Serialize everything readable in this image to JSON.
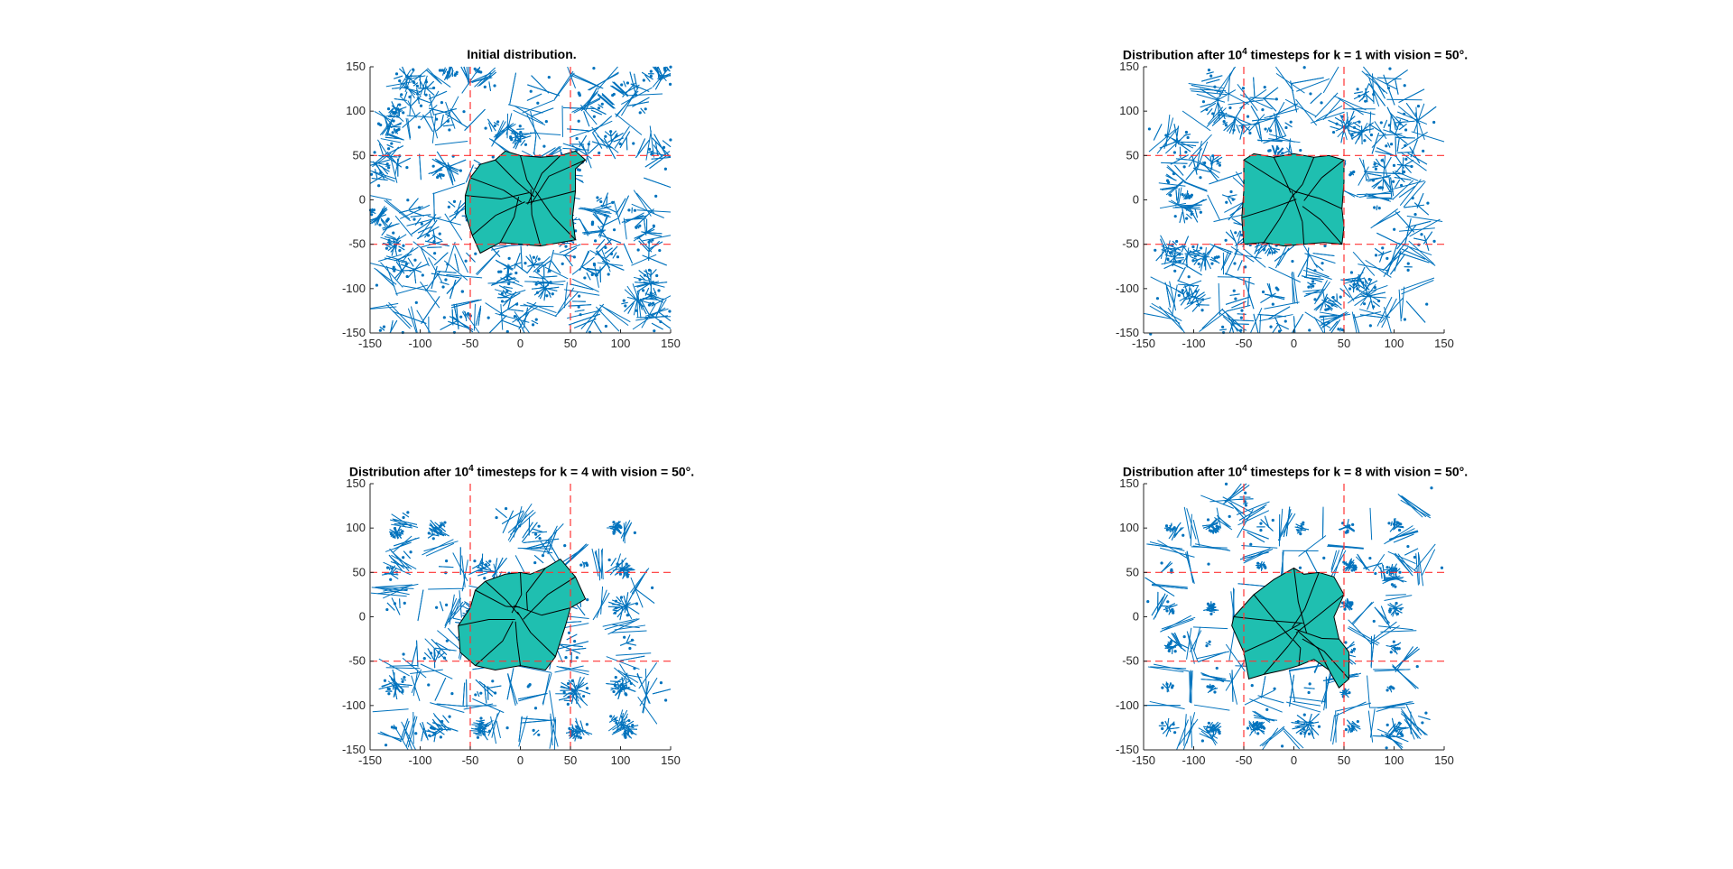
{
  "chart_data": [
    {
      "type": "scatter",
      "title_parts": {
        "text": "Initial distribution.",
        "pre": "",
        "sup": "",
        "post": ""
      },
      "xlim": [
        -150,
        150
      ],
      "ylim": [
        -150,
        150
      ],
      "xticks": [
        -150,
        -100,
        -50,
        0,
        50,
        100,
        150
      ],
      "yticks": [
        -150,
        -100,
        -50,
        0,
        50,
        100,
        150
      ],
      "reference_lines_x": [
        -50,
        50
      ],
      "reference_lines_y": [
        -50,
        50
      ],
      "highlight_region": [
        [
          -50,
          25
        ],
        [
          -40,
          40
        ],
        [
          -25,
          45
        ],
        [
          -15,
          55
        ],
        [
          0,
          50
        ],
        [
          20,
          48
        ],
        [
          40,
          50
        ],
        [
          55,
          55
        ],
        [
          65,
          45
        ],
        [
          55,
          35
        ],
        [
          55,
          10
        ],
        [
          52,
          -20
        ],
        [
          55,
          -45
        ],
        [
          40,
          -48
        ],
        [
          20,
          -52
        ],
        [
          0,
          -50
        ],
        [
          -20,
          -48
        ],
        [
          -40,
          -60
        ],
        [
          -48,
          -40
        ],
        [
          -55,
          -15
        ],
        [
          -55,
          5
        ]
      ],
      "distribution": "uniform",
      "colors": {
        "points": "#0072bd",
        "voronoi": "#0072bd",
        "region": "#1fbfb0",
        "ref": "#ff3333"
      }
    },
    {
      "type": "scatter",
      "title_parts": {
        "text": "",
        "pre": "Distribution after 10",
        "sup": "4",
        "post": " timesteps for k = 1 with vision = 50°."
      },
      "xlim": [
        -150,
        150
      ],
      "ylim": [
        -150,
        150
      ],
      "xticks": [
        -150,
        -100,
        -50,
        0,
        50,
        100,
        150
      ],
      "yticks": [
        -150,
        -100,
        -50,
        0,
        50,
        100,
        150
      ],
      "reference_lines_x": [
        -50,
        50
      ],
      "reference_lines_y": [
        -50,
        50
      ],
      "highlight_region": [
        [
          -50,
          45
        ],
        [
          -40,
          52
        ],
        [
          -20,
          48
        ],
        [
          0,
          52
        ],
        [
          20,
          48
        ],
        [
          35,
          50
        ],
        [
          50,
          45
        ],
        [
          50,
          20
        ],
        [
          48,
          -10
        ],
        [
          50,
          -30
        ],
        [
          48,
          -50
        ],
        [
          30,
          -48
        ],
        [
          10,
          -50
        ],
        [
          -10,
          -52
        ],
        [
          -30,
          -48
        ],
        [
          -50,
          -50
        ],
        [
          -52,
          -20
        ],
        [
          -50,
          10
        ]
      ],
      "distribution": "clustered-light",
      "colors": {
        "points": "#0072bd",
        "voronoi": "#0072bd",
        "region": "#1fbfb0",
        "ref": "#ff3333"
      }
    },
    {
      "type": "scatter",
      "title_parts": {
        "text": "",
        "pre": "Distribution after 10",
        "sup": "4",
        "post": " timesteps for k = 4 with vision = 50°."
      },
      "xlim": [
        -150,
        150
      ],
      "ylim": [
        -150,
        150
      ],
      "xticks": [
        -150,
        -100,
        -50,
        0,
        50,
        100,
        150
      ],
      "yticks": [
        -150,
        -100,
        -50,
        0,
        50,
        100,
        150
      ],
      "reference_lines_x": [
        -50,
        50
      ],
      "reference_lines_y": [
        -50,
        50
      ],
      "highlight_region": [
        [
          -35,
          40
        ],
        [
          -15,
          48
        ],
        [
          0,
          50
        ],
        [
          10,
          48
        ],
        [
          25,
          55
        ],
        [
          40,
          65
        ],
        [
          55,
          45
        ],
        [
          65,
          20
        ],
        [
          50,
          10
        ],
        [
          45,
          -10
        ],
        [
          35,
          -45
        ],
        [
          25,
          -60
        ],
        [
          0,
          -55
        ],
        [
          -25,
          -60
        ],
        [
          -45,
          -55
        ],
        [
          -60,
          -40
        ],
        [
          -62,
          -10
        ],
        [
          -50,
          10
        ],
        [
          -45,
          30
        ]
      ],
      "distribution": "clustered",
      "colors": {
        "points": "#0072bd",
        "voronoi": "#0072bd",
        "region": "#1fbfb0",
        "ref": "#ff3333"
      }
    },
    {
      "type": "scatter",
      "title_parts": {
        "text": "",
        "pre": "Distribution after 10",
        "sup": "4",
        "post": " timesteps for k = 8 with vision = 50°."
      },
      "xlim": [
        -150,
        150
      ],
      "ylim": [
        -150,
        150
      ],
      "xticks": [
        -150,
        -100,
        -50,
        0,
        50,
        100,
        150
      ],
      "yticks": [
        -150,
        -100,
        -50,
        0,
        50,
        100,
        150
      ],
      "reference_lines_x": [
        -50,
        50
      ],
      "reference_lines_y": [
        -50,
        50
      ],
      "highlight_region": [
        [
          -40,
          25
        ],
        [
          -20,
          42
        ],
        [
          0,
          55
        ],
        [
          10,
          48
        ],
        [
          25,
          50
        ],
        [
          40,
          45
        ],
        [
          50,
          25
        ],
        [
          40,
          0
        ],
        [
          45,
          -25
        ],
        [
          55,
          -40
        ],
        [
          55,
          -70
        ],
        [
          45,
          -80
        ],
        [
          35,
          -60
        ],
        [
          20,
          -48
        ],
        [
          5,
          -55
        ],
        [
          -10,
          -60
        ],
        [
          -30,
          -65
        ],
        [
          -45,
          -70
        ],
        [
          -50,
          -40
        ],
        [
          -62,
          -10
        ],
        [
          -60,
          0
        ]
      ],
      "distribution": "clustered-strong",
      "colors": {
        "points": "#0072bd",
        "voronoi": "#0072bd",
        "region": "#1fbfb0",
        "ref": "#ff3333"
      }
    }
  ]
}
